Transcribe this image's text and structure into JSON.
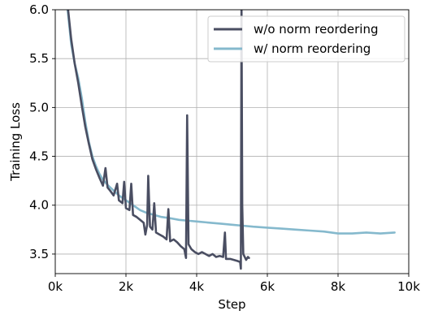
{
  "chart_data": {
    "type": "line",
    "xlabel": "Step",
    "ylabel": "Training Loss",
    "xlim": [
      0,
      10000
    ],
    "ylim": [
      3.3,
      6.0
    ],
    "x_ticks": [
      0,
      2000,
      4000,
      6000,
      8000,
      10000
    ],
    "x_tick_labels": [
      "0k",
      "2k",
      "4k",
      "6k",
      "8k",
      "10k"
    ],
    "y_ticks": [
      3.5,
      4.0,
      4.5,
      5.0,
      5.5,
      6.0
    ],
    "y_tick_labels": [
      "3.5",
      "4.0",
      "4.5",
      "5.0",
      "5.5",
      "6.0"
    ],
    "grid": true,
    "legend_position": "top-right",
    "series": [
      {
        "name": "w/o norm reordering",
        "color": "#4a4e62",
        "points": [
          [
            350,
            6.05
          ],
          [
            450,
            5.7
          ],
          [
            550,
            5.45
          ],
          [
            650,
            5.25
          ],
          [
            750,
            5.02
          ],
          [
            850,
            4.8
          ],
          [
            950,
            4.63
          ],
          [
            1050,
            4.47
          ],
          [
            1150,
            4.37
          ],
          [
            1250,
            4.28
          ],
          [
            1350,
            4.2
          ],
          [
            1420,
            4.38
          ],
          [
            1480,
            4.18
          ],
          [
            1550,
            4.15
          ],
          [
            1650,
            4.1
          ],
          [
            1750,
            4.22
          ],
          [
            1800,
            4.05
          ],
          [
            1900,
            4.02
          ],
          [
            1950,
            4.24
          ],
          [
            2000,
            3.97
          ],
          [
            2100,
            3.95
          ],
          [
            2150,
            4.22
          ],
          [
            2200,
            3.9
          ],
          [
            2300,
            3.88
          ],
          [
            2400,
            3.85
          ],
          [
            2500,
            3.82
          ],
          [
            2550,
            3.7
          ],
          [
            2600,
            3.8
          ],
          [
            2630,
            4.3
          ],
          [
            2680,
            3.78
          ],
          [
            2750,
            3.75
          ],
          [
            2800,
            4.02
          ],
          [
            2850,
            3.72
          ],
          [
            2950,
            3.7
          ],
          [
            3050,
            3.68
          ],
          [
            3150,
            3.65
          ],
          [
            3200,
            3.96
          ],
          [
            3250,
            3.63
          ],
          [
            3350,
            3.65
          ],
          [
            3450,
            3.62
          ],
          [
            3550,
            3.58
          ],
          [
            3650,
            3.55
          ],
          [
            3700,
            3.46
          ],
          [
            3730,
            4.92
          ],
          [
            3770,
            3.6
          ],
          [
            3850,
            3.55
          ],
          [
            3950,
            3.52
          ],
          [
            4050,
            3.5
          ],
          [
            4150,
            3.52
          ],
          [
            4250,
            3.5
          ],
          [
            4350,
            3.48
          ],
          [
            4450,
            3.5
          ],
          [
            4550,
            3.47
          ],
          [
            4650,
            3.48
          ],
          [
            4750,
            3.47
          ],
          [
            4800,
            3.72
          ],
          [
            4830,
            3.45
          ],
          [
            4950,
            3.45
          ],
          [
            5050,
            3.44
          ],
          [
            5150,
            3.43
          ],
          [
            5230,
            3.42
          ],
          [
            5250,
            3.35
          ],
          [
            5270,
            6.05
          ],
          [
            5290,
            4.0
          ],
          [
            5320,
            3.5
          ],
          [
            5400,
            3.44
          ],
          [
            5450,
            3.47
          ],
          [
            5480,
            3.46
          ]
        ]
      },
      {
        "name": "w/ norm reordering",
        "color": "#85b9cd",
        "points": [
          [
            350,
            6.0
          ],
          [
            450,
            5.65
          ],
          [
            550,
            5.45
          ],
          [
            650,
            5.3
          ],
          [
            750,
            5.1
          ],
          [
            850,
            4.85
          ],
          [
            950,
            4.65
          ],
          [
            1050,
            4.5
          ],
          [
            1150,
            4.4
          ],
          [
            1250,
            4.32
          ],
          [
            1350,
            4.26
          ],
          [
            1500,
            4.2
          ],
          [
            1650,
            4.15
          ],
          [
            1800,
            4.1
          ],
          [
            2000,
            4.05
          ],
          [
            2200,
            4.0
          ],
          [
            2400,
            3.95
          ],
          [
            2600,
            3.92
          ],
          [
            2800,
            3.9
          ],
          [
            3000,
            3.88
          ],
          [
            3200,
            3.87
          ],
          [
            3500,
            3.85
          ],
          [
            3800,
            3.84
          ],
          [
            4100,
            3.83
          ],
          [
            4400,
            3.82
          ],
          [
            4700,
            3.81
          ],
          [
            5000,
            3.8
          ],
          [
            5300,
            3.79
          ],
          [
            5600,
            3.78
          ],
          [
            6000,
            3.77
          ],
          [
            6400,
            3.76
          ],
          [
            6800,
            3.75
          ],
          [
            7200,
            3.74
          ],
          [
            7600,
            3.73
          ],
          [
            8000,
            3.71
          ],
          [
            8400,
            3.71
          ],
          [
            8800,
            3.72
          ],
          [
            9200,
            3.71
          ],
          [
            9600,
            3.72
          ]
        ]
      }
    ]
  }
}
